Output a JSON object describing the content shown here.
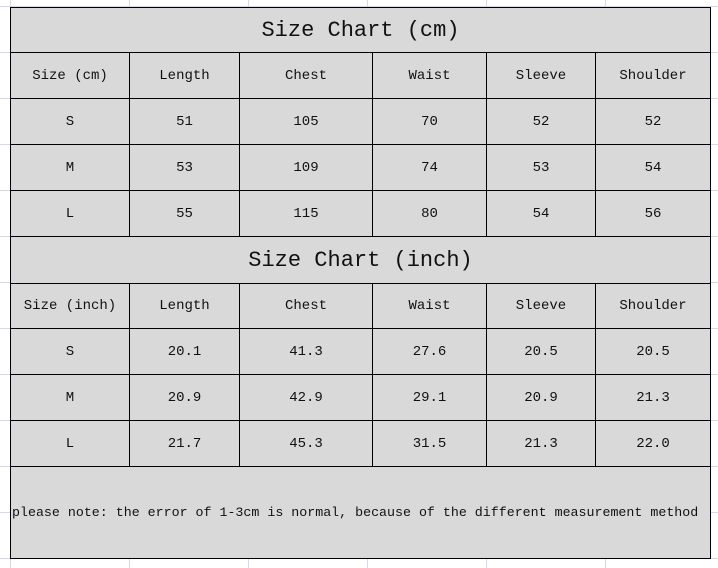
{
  "tables": [
    {
      "title": "Size Chart (cm)",
      "headers": [
        "Size (cm)",
        "Length",
        "Chest",
        "Waist",
        "Sleeve",
        "Shoulder"
      ],
      "rows": [
        [
          "S",
          "51",
          "105",
          "70",
          "52",
          "52"
        ],
        [
          "M",
          "53",
          "109",
          "74",
          "53",
          "54"
        ],
        [
          "L",
          "55",
          "115",
          "80",
          "54",
          "56"
        ]
      ]
    },
    {
      "title": "Size Chart (inch)",
      "headers": [
        "Size (inch)",
        "Length",
        "Chest",
        "Waist",
        "Sleeve",
        "Shoulder"
      ],
      "rows": [
        [
          "S",
          "20.1",
          "41.3",
          "27.6",
          "20.5",
          "20.5"
        ],
        [
          "M",
          "20.9",
          "42.9",
          "29.1",
          "20.9",
          "21.3"
        ],
        [
          "L",
          "21.7",
          "45.3",
          "31.5",
          "21.3",
          "22.0"
        ]
      ]
    }
  ],
  "note": "please note: the error of 1-3cm is normal, because of the different measurement method",
  "colors": {
    "cell_background": "#d9d9d9",
    "border": "#000000"
  }
}
